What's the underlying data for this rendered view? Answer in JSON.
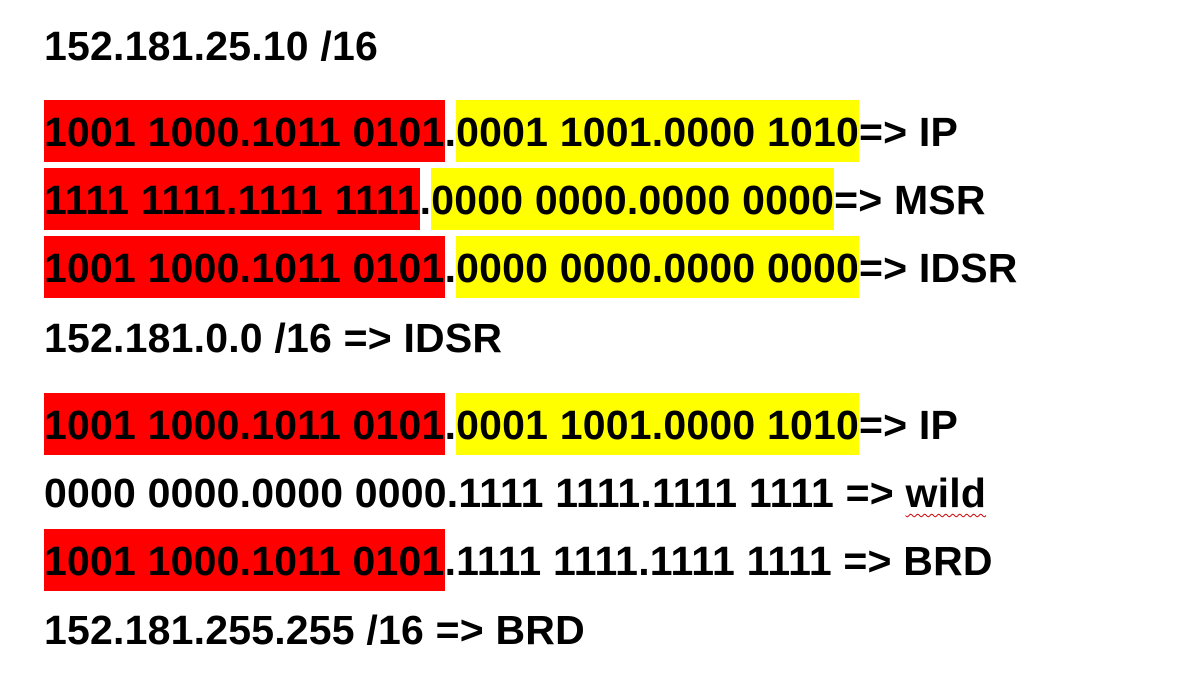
{
  "colors": {
    "network_highlight": "#ff0000",
    "host_highlight": "#ffff00",
    "spellcheck_underline": "#cc0000"
  },
  "lines": [
    {
      "text": "152.181.25.10 /16"
    },
    {
      "network": "1001 1000.1011 0101",
      "dot": ".",
      "host": "0001 1001.0000 1010",
      "suffix": " => IP"
    },
    {
      "network": "1111 1111.1111 1111",
      "dot": ".",
      "host": "0000 0000.0000 0000",
      "suffix": " => MSR"
    },
    {
      "network": "1001 1000.1011 0101",
      "dot": ".",
      "host": "0000 0000.0000 0000",
      "suffix": " => IDSR"
    },
    {
      "text": "152.181.0.0 /16 => IDSR"
    },
    {
      "network": "1001 1000.1011 0101",
      "dot": ".",
      "host": "0001 1001.0000 1010",
      "suffix": " => IP"
    },
    {
      "plain": "0000 0000.0000 0000.1111 1111.1111 1111 => ",
      "flagged": "wild"
    },
    {
      "network": "1001 1000.1011 0101",
      "rest": ".1111 1111.1111 1111 => BRD"
    },
    {
      "text": "152.181.255.255 /16 => BRD"
    }
  ]
}
